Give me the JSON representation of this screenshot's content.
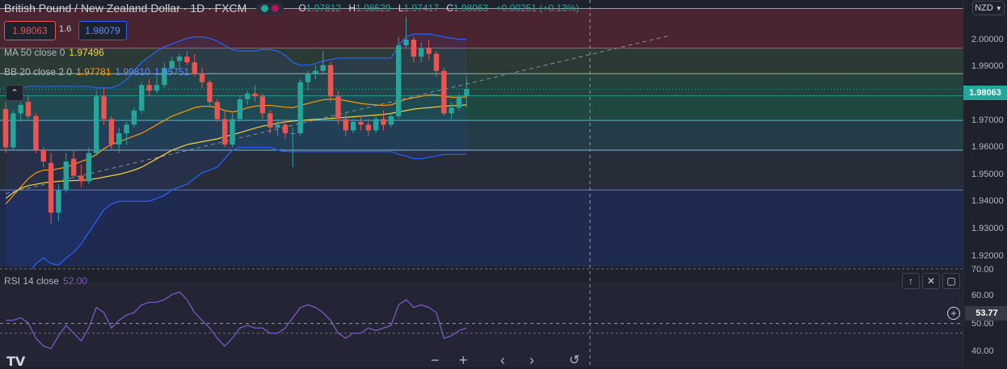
{
  "header": {
    "symbol_title": "British Pound / New Zealand Dollar · 1D · FXCM",
    "ohlc": {
      "open_key": "O",
      "open": "1.97812",
      "high_key": "H",
      "high": "1.98529",
      "low_key": "L",
      "low": "1.97417",
      "close_key": "C",
      "close": "1.98063",
      "change": "+0.00251 (+0.13%)"
    }
  },
  "trade": {
    "sell_price": "1.98063",
    "spread": "1.6",
    "buy_price": "1.98079"
  },
  "indicators": {
    "ma": {
      "label": "MA 50 close 0",
      "value": "1.97496"
    },
    "bb": {
      "label": "BB 20 close 2 0",
      "basis": "1.97781",
      "upper": "1.99810",
      "lower": "1.95751"
    },
    "rsi": {
      "label": "RSI 14 close",
      "value": "52.00",
      "marker": "53.77"
    }
  },
  "axis": {
    "currency": "NZD",
    "price_ticks": [
      "2.00000",
      "1.99000",
      "1.98063",
      "1.97000",
      "1.96000",
      "1.95000",
      "1.94000",
      "1.93000",
      "1.92000"
    ],
    "rsi_ticks": [
      "70.00",
      "60.00",
      "50.00",
      "40.00"
    ]
  },
  "colors": {
    "up": "#26a69a",
    "down": "#ef5350",
    "ma": "#f5d33d",
    "bb_band": "#2962ff",
    "bb_basis": "#ff9800",
    "rsi": "#7e57c2"
  },
  "chart_data": {
    "type": "candlestick",
    "y_range": [
      1.918,
      2.008
    ],
    "candles": [
      [
        1.9735,
        1.976,
        1.958,
        1.96
      ],
      [
        1.96,
        1.973,
        1.959,
        1.972
      ],
      [
        1.972,
        1.976,
        1.969,
        1.975
      ],
      [
        1.976,
        1.978,
        1.97,
        1.971
      ],
      [
        1.971,
        1.972,
        1.958,
        1.959
      ],
      [
        1.959,
        1.96,
        1.953,
        1.955
      ],
      [
        1.9545,
        1.958,
        1.933,
        1.937
      ],
      [
        1.937,
        1.947,
        1.934,
        1.945
      ],
      [
        1.945,
        1.958,
        1.944,
        1.955
      ],
      [
        1.956,
        1.959,
        1.949,
        1.95
      ],
      [
        1.95,
        1.954,
        1.946,
        1.948
      ],
      [
        1.948,
        1.96,
        1.947,
        1.958
      ],
      [
        1.958,
        1.98,
        1.957,
        1.978
      ],
      [
        1.978,
        1.981,
        1.968,
        1.97
      ],
      [
        1.97,
        1.971,
        1.959,
        1.961
      ],
      [
        1.961,
        1.967,
        1.958,
        1.965
      ],
      [
        1.965,
        1.969,
        1.961,
        1.968
      ],
      [
        1.968,
        1.974,
        1.967,
        1.973
      ],
      [
        1.973,
        1.983,
        1.972,
        1.982
      ],
      [
        1.982,
        1.984,
        1.978,
        1.98
      ],
      [
        1.98,
        1.985,
        1.979,
        1.982
      ],
      [
        1.982,
        1.99,
        1.981,
        1.988
      ],
      [
        1.988,
        1.992,
        1.986,
        1.9905
      ],
      [
        1.9905,
        1.993,
        1.988,
        1.992
      ],
      [
        1.992,
        1.994,
        1.989,
        1.99
      ],
      [
        1.99,
        1.993,
        1.985,
        1.986
      ],
      [
        1.986,
        1.988,
        1.981,
        1.983
      ],
      [
        1.983,
        1.984,
        1.974,
        1.976
      ],
      [
        1.976,
        1.977,
        1.969,
        1.97
      ],
      [
        1.97,
        1.973,
        1.96,
        1.961
      ],
      [
        1.961,
        1.972,
        1.96,
        1.97
      ],
      [
        1.97,
        1.978,
        1.969,
        1.977
      ],
      [
        1.977,
        1.98,
        1.975,
        1.979
      ],
      [
        1.979,
        1.982,
        1.976,
        1.978
      ],
      [
        1.978,
        1.979,
        1.97,
        1.972
      ],
      [
        1.972,
        1.973,
        1.965,
        1.967
      ],
      [
        1.967,
        1.97,
        1.964,
        1.968
      ],
      [
        1.968,
        1.97,
        1.963,
        1.965
      ],
      [
        1.965,
        1.967,
        1.953,
        1.965
      ],
      [
        1.965,
        1.984,
        1.964,
        1.983
      ],
      [
        1.983,
        1.987,
        1.98,
        1.986
      ],
      [
        1.986,
        1.989,
        1.984,
        1.987
      ],
      [
        1.987,
        1.994,
        1.986,
        1.989
      ],
      [
        1.989,
        1.99,
        1.976,
        1.978
      ],
      [
        1.978,
        1.98,
        1.968,
        1.97
      ],
      [
        1.97,
        1.972,
        1.964,
        1.966
      ],
      [
        1.966,
        1.97,
        1.965,
        1.969
      ],
      [
        1.969,
        1.971,
        1.966,
        1.968
      ],
      [
        1.968,
        1.97,
        1.964,
        1.966
      ],
      [
        1.966,
        1.971,
        1.965,
        1.97
      ],
      [
        1.97,
        1.973,
        1.966,
        1.968
      ],
      [
        1.968,
        1.972,
        1.967,
        1.971
      ],
      [
        1.971,
        1.999,
        1.97,
        1.996
      ],
      [
        1.996,
        2.006,
        1.995,
        1.998
      ],
      [
        1.998,
        1.999,
        1.99,
        1.992
      ],
      [
        1.992,
        1.997,
        1.99,
        1.995
      ],
      [
        1.995,
        1.998,
        1.991,
        1.993
      ],
      [
        1.993,
        1.994,
        1.985,
        1.987
      ],
      [
        1.987,
        1.988,
        1.971,
        1.972
      ],
      [
        1.972,
        1.976,
        1.97,
        1.974
      ],
      [
        1.974,
        1.979,
        1.973,
        1.978
      ],
      [
        1.9781,
        1.9853,
        1.9742,
        1.9806
      ]
    ],
    "ma50": [
      1.942,
      1.944,
      1.9455,
      1.9465,
      1.947,
      1.9475,
      1.9478,
      1.948,
      1.9482,
      1.9483,
      1.9484,
      1.9486,
      1.949,
      1.9495,
      1.95,
      1.9505,
      1.9512,
      1.952,
      1.953,
      1.9545,
      1.956,
      1.9575,
      1.959,
      1.96,
      1.961,
      1.9615,
      1.962,
      1.9625,
      1.963,
      1.9638,
      1.9645,
      1.9652,
      1.966,
      1.9668,
      1.9675,
      1.968,
      1.9685,
      1.969,
      1.9693,
      1.9695,
      1.9697,
      1.9699,
      1.97,
      1.9702,
      1.9704,
      1.9706,
      1.9708,
      1.971,
      1.9712,
      1.9714,
      1.9716,
      1.972,
      1.9725,
      1.973,
      1.9735,
      1.9738,
      1.974,
      1.9743,
      1.9745,
      1.9747,
      1.9748,
      1.975
    ],
    "bb_basis": [
      1.94,
      1.943,
      1.946,
      1.949,
      1.951,
      1.952,
      1.952,
      1.9525,
      1.953,
      1.954,
      1.955,
      1.956,
      1.9575,
      1.9595,
      1.961,
      1.962,
      1.963,
      1.964,
      1.965,
      1.9665,
      1.968,
      1.9695,
      1.971,
      1.972,
      1.973,
      1.974,
      1.9745,
      1.9745,
      1.974,
      1.973,
      1.9725,
      1.973,
      1.974,
      1.9745,
      1.9748,
      1.9748,
      1.9745,
      1.9742,
      1.974,
      1.9748,
      1.9755,
      1.9762,
      1.9768,
      1.977,
      1.977,
      1.9765,
      1.976,
      1.9755,
      1.9752,
      1.975,
      1.9748,
      1.975,
      1.976,
      1.977,
      1.9775,
      1.978,
      1.9785,
      1.9785,
      1.978,
      1.9777,
      1.9776,
      1.9778
    ],
    "bb_upper": [
      1.979,
      1.98,
      1.981,
      1.9815,
      1.9815,
      1.9815,
      1.9815,
      1.9815,
      1.9815,
      1.9815,
      1.9815,
      1.9815,
      1.981,
      1.981,
      1.981,
      1.982,
      1.984,
      1.987,
      1.99,
      1.992,
      1.994,
      1.9955,
      1.9965,
      1.9975,
      1.9985,
      1.999,
      1.999,
      1.9985,
      1.9975,
      1.996,
      1.9945,
      1.994,
      1.994,
      1.994,
      1.9945,
      1.9945,
      1.994,
      1.9925,
      1.99,
      1.989,
      1.989,
      1.9895,
      1.9905,
      1.991,
      1.9915,
      1.9915,
      1.9915,
      1.9915,
      1.9915,
      1.9915,
      1.9915,
      1.9915,
      1.996,
      1.999,
      2.0,
      2.0,
      2.0,
      1.9995,
      1.999,
      1.9985,
      1.9982,
      1.9981
    ],
    "bb_lower": [
      1.9,
      1.905,
      1.91,
      1.915,
      1.919,
      1.921,
      1.919,
      1.9185,
      1.921,
      1.923,
      1.926,
      1.93,
      1.934,
      1.938,
      1.94,
      1.941,
      1.941,
      1.941,
      1.941,
      1.941,
      1.942,
      1.943,
      1.945,
      1.946,
      1.947,
      1.949,
      1.951,
      1.952,
      1.953,
      1.956,
      1.959,
      1.96,
      1.96,
      1.96,
      1.96,
      1.96,
      1.959,
      1.9585,
      1.9585,
      1.9585,
      1.9585,
      1.9585,
      1.9585,
      1.9585,
      1.9585,
      1.9585,
      1.9585,
      1.9585,
      1.9585,
      1.9585,
      1.9585,
      1.9585,
      1.9575,
      1.957,
      1.956,
      1.956,
      1.9565,
      1.957,
      1.9575,
      1.9575,
      1.9575,
      1.9575
    ],
    "rsi": [
      55,
      55,
      56,
      54,
      48,
      45,
      44,
      49,
      53,
      50,
      47,
      52,
      60,
      58,
      52,
      55,
      57,
      58,
      61,
      62,
      62,
      63,
      65,
      66,
      63,
      58,
      55,
      52,
      48,
      45,
      48,
      52,
      53,
      52,
      52,
      50,
      50,
      52,
      56,
      60,
      61,
      60,
      58,
      55,
      50,
      48,
      50,
      50,
      52,
      51,
      52,
      53,
      61,
      63,
      60,
      61,
      60,
      58,
      48,
      49,
      51,
      52
    ],
    "rsi_range": [
      37,
      75
    ],
    "trendline": {
      "from": [
        0,
        1.9437
      ],
      "to": [
        88,
        1.9995
      ]
    },
    "levels": [
      2.009,
      1.995,
      1.986,
      1.9782,
      1.9695,
      1.959,
      1.945,
      1.938
    ]
  }
}
